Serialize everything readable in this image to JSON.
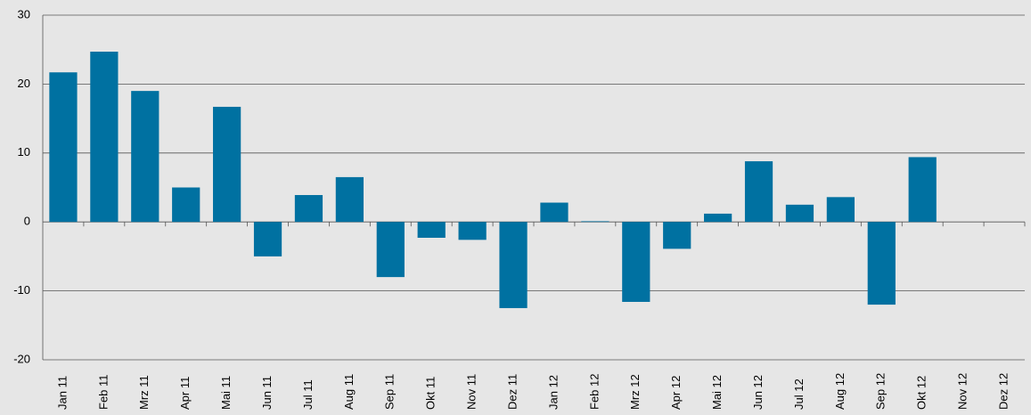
{
  "chart_data": {
    "type": "bar",
    "categories": [
      "Jan 11",
      "Feb 11",
      "Mrz 11",
      "Apr 11",
      "Mai 11",
      "Jun 11",
      "Jul 11",
      "Aug 11",
      "Sep 11",
      "Okt 11",
      "Nov 11",
      "Dez 11",
      "Jan 12",
      "Feb 12",
      "Mrz 12",
      "Apr 12",
      "Mai 12",
      "Jun 12",
      "Jul 12",
      "Aug 12",
      "Sep 12",
      "Okt 12",
      "Nov 12",
      "Dez 12"
    ],
    "values": [
      21.7,
      24.7,
      19.0,
      5.0,
      16.7,
      -5.0,
      3.9,
      6.5,
      -8.0,
      -2.3,
      -2.6,
      -12.5,
      2.8,
      0.1,
      -11.6,
      -3.9,
      1.2,
      8.8,
      2.5,
      3.6,
      -12.0,
      9.4,
      null,
      null
    ],
    "color": "#0071a1",
    "ylim": [
      -20,
      30
    ],
    "yticks": [
      -20,
      -10,
      0,
      10,
      20,
      30
    ],
    "grid": true
  }
}
